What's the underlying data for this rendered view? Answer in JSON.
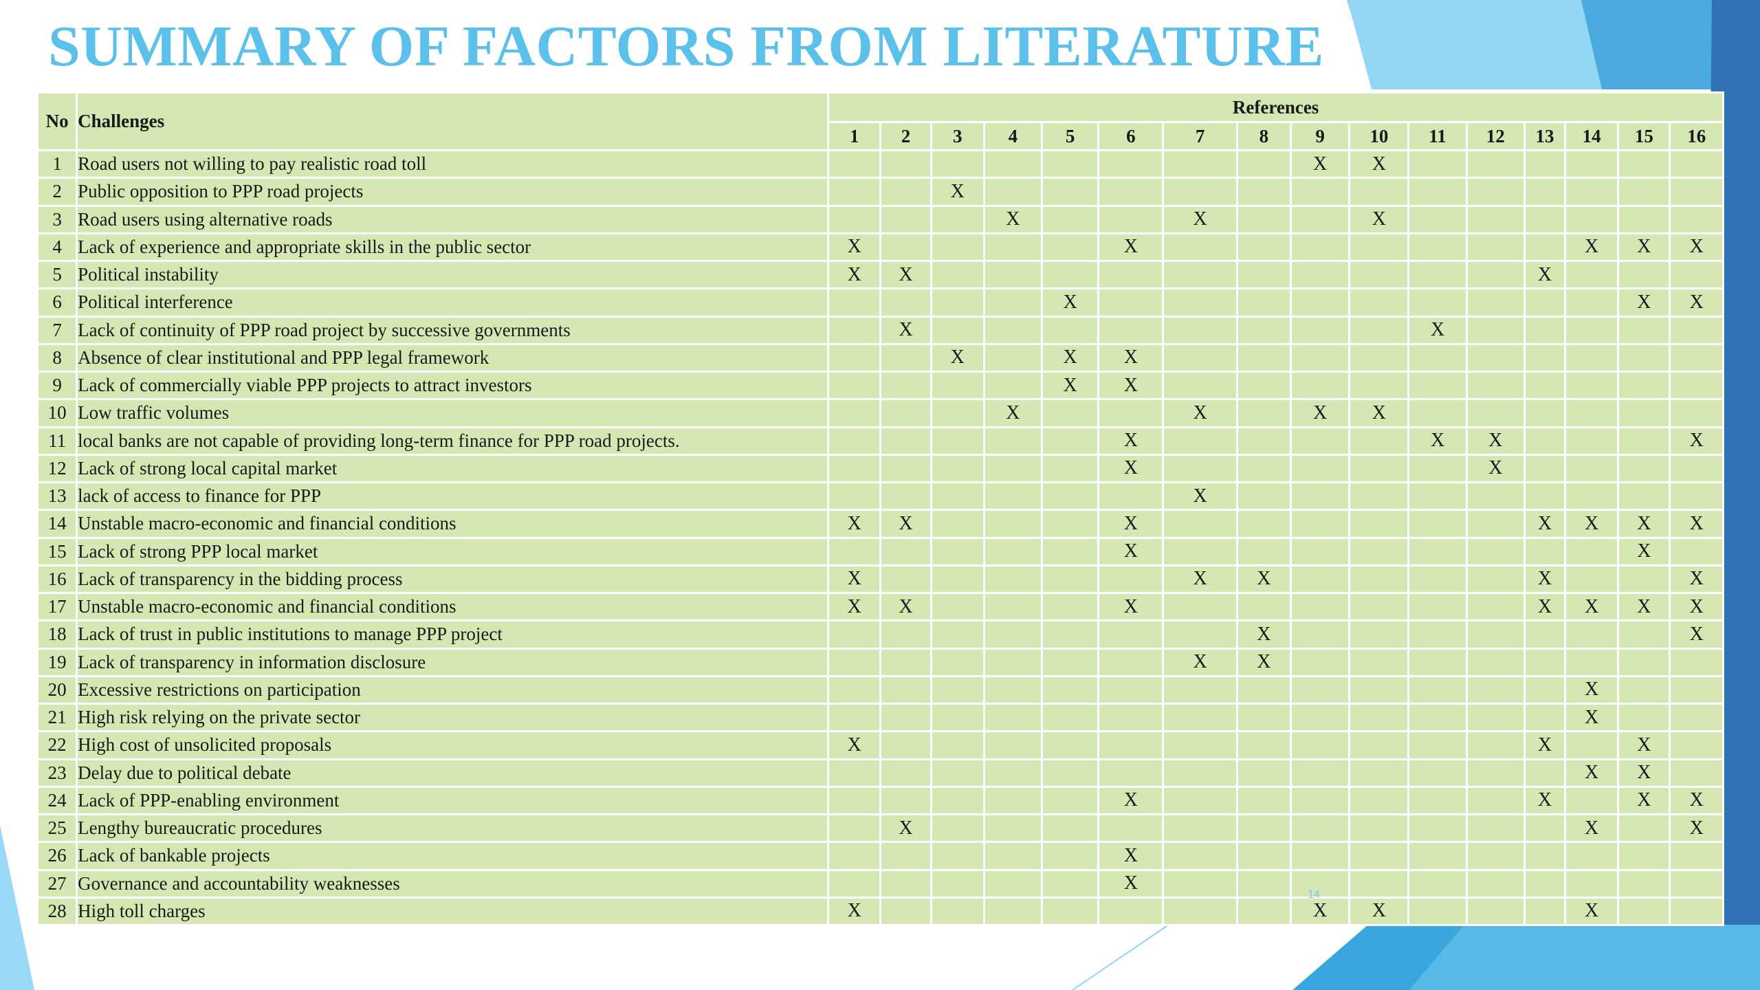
{
  "title": "SUMMARY OF FACTORS FROM LITERATURE",
  "page_number": "14",
  "colors": {
    "title": "#5bc0ea",
    "table_fill": "#d5e8b3",
    "grid": "#ffffff",
    "decor_light": "#7fd0f2",
    "decor_mid": "#3aa6de",
    "decor_dark": "#2f73b4"
  },
  "table": {
    "header": {
      "no": "No",
      "challenges": "Challenges",
      "references": "References",
      "refs": [
        "1",
        "2",
        "3",
        "4",
        "5",
        "6",
        "7",
        "8",
        "9",
        "10",
        "11",
        "12",
        "13",
        "14",
        "15",
        "16"
      ]
    },
    "mark": "X",
    "rows": [
      {
        "no": "1",
        "challenge": "Road users not willing to pay realistic road toll",
        "refs": [
          9,
          10
        ]
      },
      {
        "no": "2",
        "challenge": "Public opposition to PPP road projects",
        "refs": [
          3
        ]
      },
      {
        "no": "3",
        "challenge": "Road users using alternative roads",
        "refs": [
          4,
          7,
          10
        ]
      },
      {
        "no": "4",
        "challenge": "Lack of experience and appropriate skills in the public sector",
        "refs": [
          1,
          6,
          14,
          15,
          16
        ]
      },
      {
        "no": "5",
        "challenge": "Political instability",
        "refs": [
          1,
          2,
          13
        ]
      },
      {
        "no": "6",
        "challenge": "Political interference",
        "refs": [
          5,
          15,
          16
        ]
      },
      {
        "no": "7",
        "challenge": "Lack of continuity of PPP road project by successive governments",
        "refs": [
          2,
          11
        ]
      },
      {
        "no": "8",
        "challenge": "Absence of clear institutional and PPP legal framework",
        "refs": [
          3,
          5,
          6
        ]
      },
      {
        "no": "9",
        "challenge": "Lack of commercially viable PPP projects to attract investors",
        "refs": [
          5,
          6
        ]
      },
      {
        "no": "10",
        "challenge": "Low traffic volumes",
        "refs": [
          4,
          7,
          9,
          10
        ]
      },
      {
        "no": "11",
        "challenge": "local banks are not capable of providing long-term finance for PPP road projects.",
        "refs": [
          6,
          11,
          12,
          16
        ]
      },
      {
        "no": "12",
        "challenge": "Lack of strong local capital market",
        "refs": [
          6,
          12
        ]
      },
      {
        "no": "13",
        "challenge": "lack of access to finance for PPP",
        "refs": [
          7
        ]
      },
      {
        "no": "14",
        "challenge": "Unstable macro-economic and financial conditions",
        "refs": [
          1,
          2,
          6,
          13,
          14,
          15,
          16
        ]
      },
      {
        "no": "15",
        "challenge": "Lack of strong PPP local market",
        "refs": [
          6,
          15
        ]
      },
      {
        "no": "16",
        "challenge": "Lack of transparency in the bidding process",
        "refs": [
          1,
          7,
          8,
          13,
          16
        ]
      },
      {
        "no": "17",
        "challenge": "Unstable macro-economic and financial conditions",
        "refs": [
          1,
          2,
          6,
          13,
          14,
          15,
          16
        ]
      },
      {
        "no": "18",
        "challenge": "Lack of trust in public institutions to manage PPP project",
        "refs": [
          8,
          16
        ]
      },
      {
        "no": "19",
        "challenge": "Lack of transparency in information disclosure",
        "refs": [
          7,
          8
        ]
      },
      {
        "no": "20",
        "challenge": "Excessive restrictions on participation",
        "refs": [
          14
        ]
      },
      {
        "no": "21",
        "challenge": "High risk relying on the private sector",
        "refs": [
          14
        ]
      },
      {
        "no": "22",
        "challenge": "High cost of unsolicited proposals",
        "refs": [
          1,
          13,
          15
        ]
      },
      {
        "no": "23",
        "challenge": "Delay due to political debate",
        "refs": [
          14,
          15
        ]
      },
      {
        "no": "24",
        "challenge": "Lack of PPP-enabling environment",
        "refs": [
          6,
          13,
          15,
          16
        ]
      },
      {
        "no": "25",
        "challenge": "Lengthy bureaucratic procedures",
        "refs": [
          2,
          14,
          16
        ]
      },
      {
        "no": "26",
        "challenge": "Lack of bankable projects",
        "refs": [
          6
        ]
      },
      {
        "no": "27",
        "challenge": "Governance and accountability weaknesses",
        "refs": [
          6
        ]
      },
      {
        "no": "28",
        "challenge": "High toll charges",
        "refs": [
          1,
          9,
          10,
          14
        ]
      }
    ]
  }
}
